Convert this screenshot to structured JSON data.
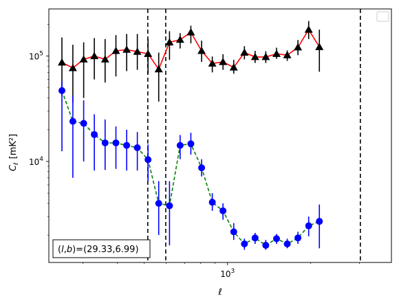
{
  "chart_data": {
    "type": "scatter",
    "x_scale": "log",
    "y_scale": "log",
    "xlim": [
      226,
      3913
    ],
    "ylim": [
      1100,
      280000
    ],
    "xlabel": "ℓ",
    "ylabel_main": "C",
    "ylabel_sub": "ℓ",
    "ylabel_unit": "[mK²]",
    "x_major_ticks": [
      {
        "value": 1000,
        "base": "10",
        "exp": "3"
      }
    ],
    "y_major_ticks": [
      {
        "value": 10000,
        "base": "10",
        "exp": "4"
      },
      {
        "value": 100000,
        "base": "10",
        "exp": "5"
      }
    ],
    "annotation": "(l,b)=(29.33,6.99)",
    "annotation_parts": {
      "open": "(",
      "l": "l",
      "comma": ",",
      "b": "b",
      "rest": ")=(29.33,6.99)"
    },
    "legend": "empty box, top-right",
    "vlines": [
      {
        "x": 515,
        "style": "dashed",
        "color": "#000000"
      },
      {
        "x": 598,
        "style": "dashed",
        "color": "#000000"
      },
      {
        "x": 3021,
        "style": "dashed",
        "color": "#000000"
      }
    ],
    "series": [
      {
        "marker": "triangle",
        "line_color": "#ff0000",
        "marker_color": "#000000",
        "line_style": "solid",
        "points": [
          {
            "x": 252,
            "y": 87000,
            "lo": 42000,
            "hi": 150000
          },
          {
            "x": 276,
            "y": 77000,
            "lo": 36000,
            "hi": 128000
          },
          {
            "x": 302,
            "y": 93000,
            "lo": 40000,
            "hi": 135000
          },
          {
            "x": 330,
            "y": 100000,
            "lo": 60000,
            "hi": 148000
          },
          {
            "x": 361,
            "y": 93000,
            "lo": 56000,
            "hi": 145000
          },
          {
            "x": 395,
            "y": 112000,
            "lo": 64000,
            "hi": 158000
          },
          {
            "x": 432,
            "y": 115000,
            "lo": 72000,
            "hi": 162000
          },
          {
            "x": 472,
            "y": 110000,
            "lo": 74000,
            "hi": 162000
          },
          {
            "x": 516,
            "y": 105000,
            "lo": 68000,
            "hi": 145000
          },
          {
            "x": 564,
            "y": 75000,
            "lo": 37000,
            "hi": 108000
          },
          {
            "x": 617,
            "y": 135000,
            "lo": 92000,
            "hi": 172000
          },
          {
            "x": 674,
            "y": 143000,
            "lo": 118000,
            "hi": 165000
          },
          {
            "x": 737,
            "y": 168000,
            "lo": 132000,
            "hi": 194000
          },
          {
            "x": 806,
            "y": 112000,
            "lo": 88000,
            "hi": 140000
          },
          {
            "x": 881,
            "y": 85000,
            "lo": 70000,
            "hi": 99000
          },
          {
            "x": 963,
            "y": 88000,
            "lo": 74000,
            "hi": 104000
          },
          {
            "x": 1053,
            "y": 78000,
            "lo": 68000,
            "hi": 92000
          },
          {
            "x": 1151,
            "y": 108000,
            "lo": 93000,
            "hi": 124000
          },
          {
            "x": 1258,
            "y": 98000,
            "lo": 86000,
            "hi": 112000
          },
          {
            "x": 1375,
            "y": 98000,
            "lo": 86000,
            "hi": 111000
          },
          {
            "x": 1504,
            "y": 105000,
            "lo": 94000,
            "hi": 120000
          },
          {
            "x": 1644,
            "y": 102000,
            "lo": 90000,
            "hi": 113000
          },
          {
            "x": 1797,
            "y": 121000,
            "lo": 102000,
            "hi": 142000
          },
          {
            "x": 1965,
            "y": 178000,
            "lo": 145000,
            "hi": 215000
          },
          {
            "x": 2148,
            "y": 122000,
            "lo": 71000,
            "hi": 178000
          }
        ]
      },
      {
        "marker": "circle",
        "line_color": "#008000",
        "marker_color": "#0000ff",
        "line_style": "dashed",
        "points": [
          {
            "x": 252,
            "y": 47000,
            "lo": 12500,
            "hi": 58000
          },
          {
            "x": 276,
            "y": 24000,
            "lo": 7000,
            "hi": 42000
          },
          {
            "x": 302,
            "y": 23000,
            "lo": 10000,
            "hi": 38000
          },
          {
            "x": 330,
            "y": 18000,
            "lo": 8200,
            "hi": 28000
          },
          {
            "x": 361,
            "y": 15000,
            "lo": 8300,
            "hi": 25000
          },
          {
            "x": 395,
            "y": 15000,
            "lo": 8500,
            "hi": 21500
          },
          {
            "x": 432,
            "y": 14200,
            "lo": 8200,
            "hi": 20000
          },
          {
            "x": 472,
            "y": 13500,
            "lo": 8200,
            "hi": 19000
          },
          {
            "x": 516,
            "y": 10400,
            "lo": 6500,
            "hi": 14500
          },
          {
            "x": 564,
            "y": 4000,
            "lo": 2000,
            "hi": 6500
          },
          {
            "x": 617,
            "y": 3800,
            "lo": 1600,
            "hi": 6500
          },
          {
            "x": 674,
            "y": 14200,
            "lo": 10500,
            "hi": 17800
          },
          {
            "x": 737,
            "y": 14700,
            "lo": 11600,
            "hi": 18700
          },
          {
            "x": 806,
            "y": 8700,
            "lo": 7200,
            "hi": 10500
          },
          {
            "x": 881,
            "y": 4100,
            "lo": 3400,
            "hi": 5000
          },
          {
            "x": 963,
            "y": 3400,
            "lo": 2800,
            "hi": 4000
          },
          {
            "x": 1053,
            "y": 2150,
            "lo": 1800,
            "hi": 2600
          },
          {
            "x": 1151,
            "y": 1650,
            "lo": 1450,
            "hi": 1850
          },
          {
            "x": 1258,
            "y": 1880,
            "lo": 1650,
            "hi": 2100
          },
          {
            "x": 1375,
            "y": 1600,
            "lo": 1450,
            "hi": 1800
          },
          {
            "x": 1504,
            "y": 1850,
            "lo": 1650,
            "hi": 2050
          },
          {
            "x": 1644,
            "y": 1650,
            "lo": 1500,
            "hi": 1850
          },
          {
            "x": 1797,
            "y": 1880,
            "lo": 1650,
            "hi": 2150
          },
          {
            "x": 1965,
            "y": 2450,
            "lo": 1950,
            "hi": 3000
          },
          {
            "x": 2148,
            "y": 2700,
            "lo": 1500,
            "hi": 3900
          }
        ]
      }
    ]
  }
}
